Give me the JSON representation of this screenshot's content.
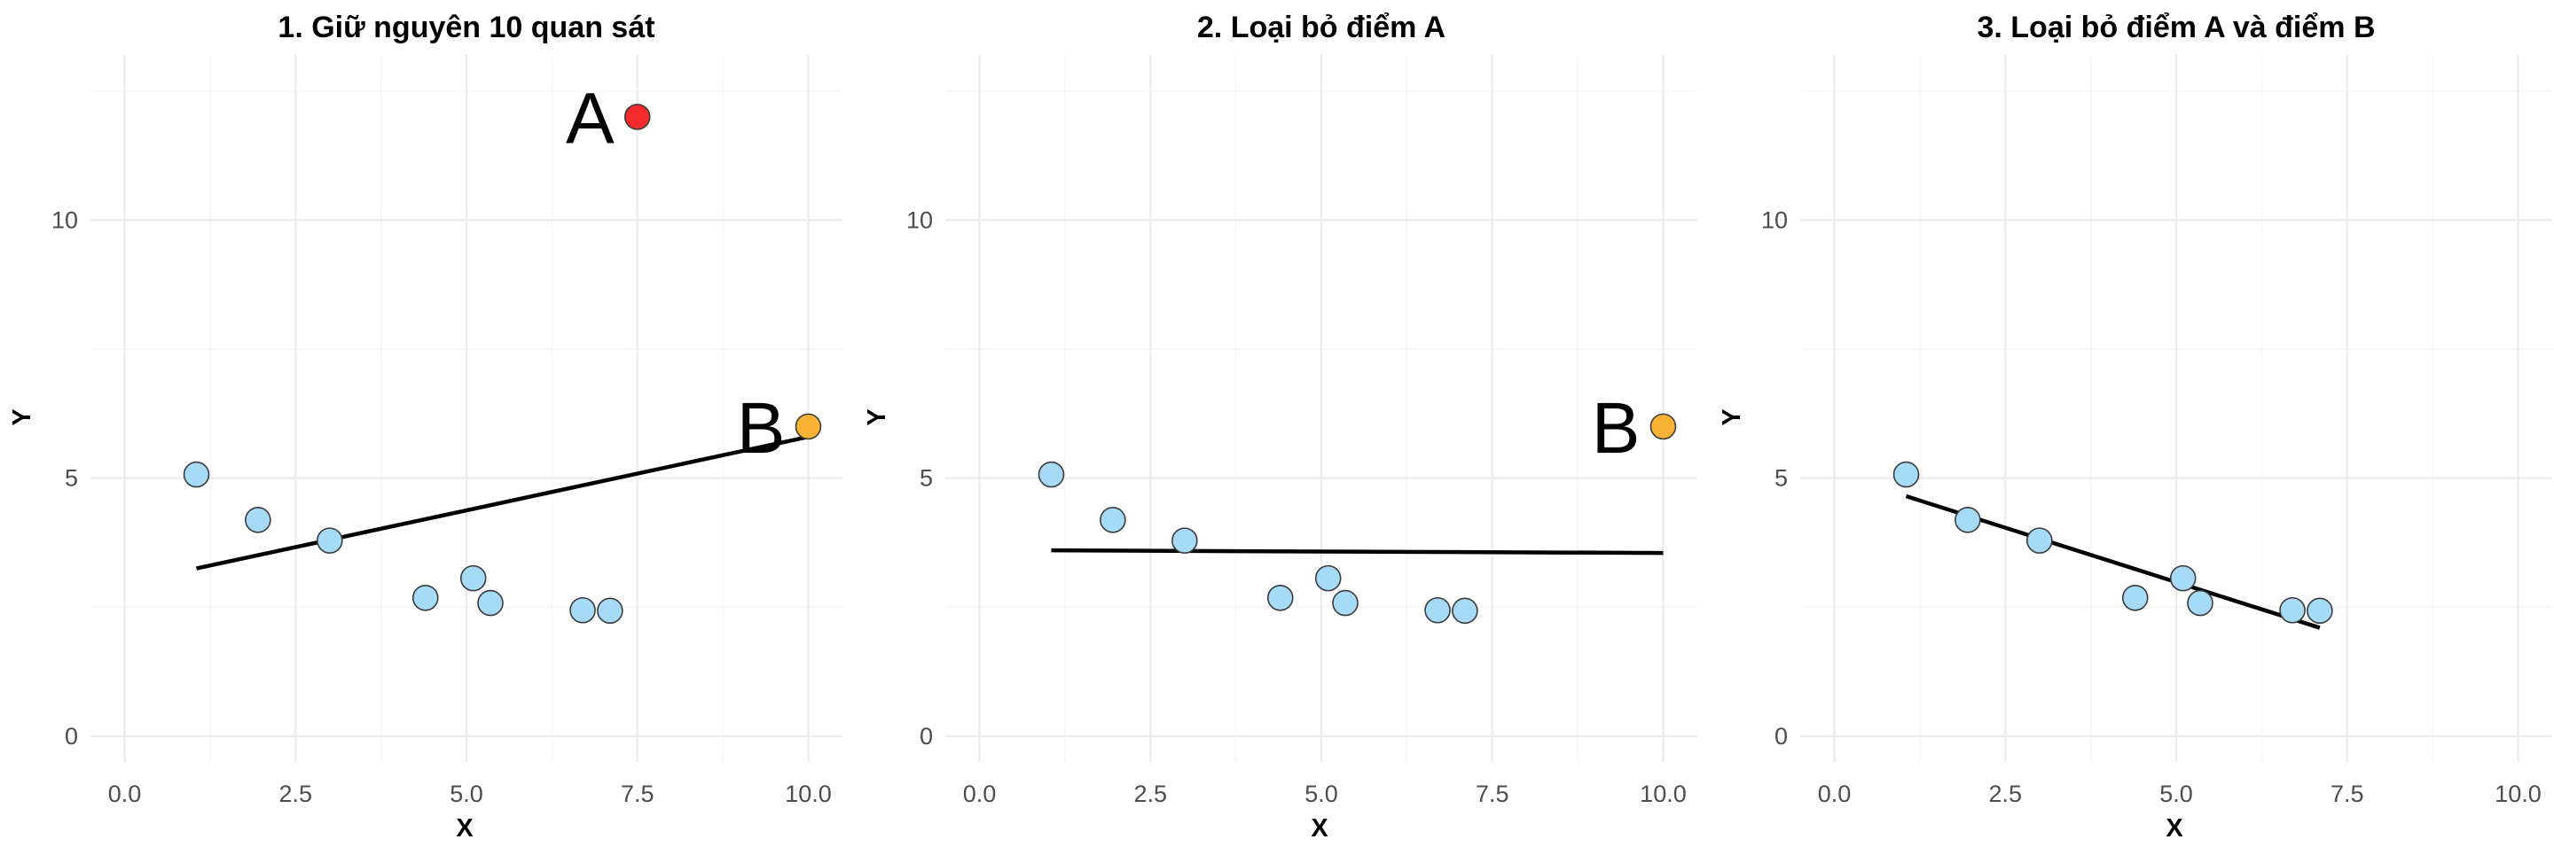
{
  "chart_data": [
    {
      "type": "scatter",
      "title": "1. Giữ nguyên 10 quan sát",
      "xlabel": "X",
      "ylabel": "Y",
      "xlim": [
        -0.5,
        10.5
      ],
      "ylim": [
        -0.5,
        13.2
      ],
      "x_ticks": [
        "0.0",
        "2.5",
        "5.0",
        "7.5",
        "10.0"
      ],
      "x_tick_values": [
        0,
        2.5,
        5,
        7.5,
        10
      ],
      "y_ticks": [
        "0",
        "5",
        "10"
      ],
      "y_tick_values": [
        0,
        5,
        10
      ],
      "grid": true,
      "colors": {
        "normal": "#a6dbf7",
        "A": "#f52a2a",
        "B": "#f9b233",
        "line": "#000000"
      },
      "points": [
        {
          "x": 1.05,
          "y": 5.07,
          "group": "normal"
        },
        {
          "x": 1.95,
          "y": 4.19,
          "group": "normal"
        },
        {
          "x": 3.0,
          "y": 3.79,
          "group": "normal"
        },
        {
          "x": 4.4,
          "y": 2.68,
          "group": "normal"
        },
        {
          "x": 5.1,
          "y": 3.06,
          "group": "normal"
        },
        {
          "x": 5.35,
          "y": 2.58,
          "group": "normal"
        },
        {
          "x": 6.7,
          "y": 2.44,
          "group": "normal"
        },
        {
          "x": 7.1,
          "y": 2.43,
          "group": "normal"
        },
        {
          "x": 7.5,
          "y": 12.0,
          "group": "A",
          "label": "A"
        },
        {
          "x": 10.0,
          "y": 6.0,
          "group": "B",
          "label": "B"
        }
      ],
      "fit_line": {
        "x": [
          1.05,
          10.0
        ],
        "y": [
          3.25,
          5.8
        ]
      }
    },
    {
      "type": "scatter",
      "title": "2. Loại bỏ điểm A",
      "xlabel": "X",
      "ylabel": "Y",
      "xlim": [
        -0.5,
        10.5
      ],
      "ylim": [
        -0.5,
        13.2
      ],
      "x_ticks": [
        "0.0",
        "2.5",
        "5.0",
        "7.5",
        "10.0"
      ],
      "x_tick_values": [
        0,
        2.5,
        5,
        7.5,
        10
      ],
      "y_ticks": [
        "0",
        "5",
        "10"
      ],
      "y_tick_values": [
        0,
        5,
        10
      ],
      "grid": true,
      "colors": {
        "normal": "#a6dbf7",
        "B": "#f9b233",
        "line": "#000000"
      },
      "points": [
        {
          "x": 1.05,
          "y": 5.07,
          "group": "normal"
        },
        {
          "x": 1.95,
          "y": 4.19,
          "group": "normal"
        },
        {
          "x": 3.0,
          "y": 3.79,
          "group": "normal"
        },
        {
          "x": 4.4,
          "y": 2.68,
          "group": "normal"
        },
        {
          "x": 5.1,
          "y": 3.06,
          "group": "normal"
        },
        {
          "x": 5.35,
          "y": 2.58,
          "group": "normal"
        },
        {
          "x": 6.7,
          "y": 2.44,
          "group": "normal"
        },
        {
          "x": 7.1,
          "y": 2.43,
          "group": "normal"
        },
        {
          "x": 10.0,
          "y": 6.0,
          "group": "B",
          "label": "B"
        }
      ],
      "fit_line": {
        "x": [
          1.05,
          10.0
        ],
        "y": [
          3.6,
          3.55
        ]
      }
    },
    {
      "type": "scatter",
      "title": "3. Loại bỏ điểm A và điểm B",
      "xlabel": "X",
      "ylabel": "Y",
      "xlim": [
        -0.5,
        10.5
      ],
      "ylim": [
        -0.5,
        13.2
      ],
      "x_ticks": [
        "0.0",
        "2.5",
        "5.0",
        "7.5",
        "10.0"
      ],
      "x_tick_values": [
        0,
        2.5,
        5,
        7.5,
        10
      ],
      "y_ticks": [
        "0",
        "5",
        "10"
      ],
      "y_tick_values": [
        0,
        5,
        10
      ],
      "grid": true,
      "colors": {
        "normal": "#a6dbf7",
        "line": "#000000"
      },
      "points": [
        {
          "x": 1.05,
          "y": 5.07,
          "group": "normal"
        },
        {
          "x": 1.95,
          "y": 4.19,
          "group": "normal"
        },
        {
          "x": 3.0,
          "y": 3.79,
          "group": "normal"
        },
        {
          "x": 4.4,
          "y": 2.68,
          "group": "normal"
        },
        {
          "x": 5.1,
          "y": 3.06,
          "group": "normal"
        },
        {
          "x": 5.35,
          "y": 2.58,
          "group": "normal"
        },
        {
          "x": 6.7,
          "y": 2.44,
          "group": "normal"
        },
        {
          "x": 7.1,
          "y": 2.43,
          "group": "normal"
        }
      ],
      "fit_line": {
        "x": [
          1.05,
          7.1
        ],
        "y": [
          4.65,
          2.1
        ]
      }
    }
  ]
}
